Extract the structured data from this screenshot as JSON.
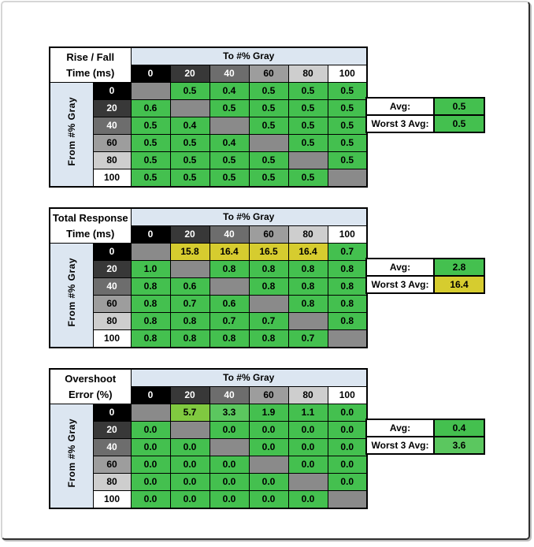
{
  "colors": {
    "cells": {
      "green": "#44c04f",
      "mid_green": "#5bc75f",
      "yellow_green": "#80c940",
      "yellow": "#d6cc2f",
      "diagonal": "#8a8a8a"
    },
    "header_strip": "#dce6f1",
    "gray_ramp": {
      "0": "#000000",
      "20": "#383838",
      "40": "#6d6d6d",
      "60": "#9d9d9d",
      "80": "#cecece",
      "100": "#ffffff"
    },
    "gray_ramp_text": {
      "0": "#ffffff",
      "20": "#ffffff",
      "40": "#ffffff",
      "60": "#000000",
      "80": "#000000",
      "100": "#000000"
    }
  },
  "chart_data": [
    {
      "type": "heatmap",
      "title_lines": [
        "Rise / Fall",
        "Time (ms)"
      ],
      "col_axis_label": "To #% Gray",
      "row_axis_label": "From #% Gray",
      "columns": [
        "0",
        "20",
        "40",
        "60",
        "80",
        "100"
      ],
      "rows": [
        "0",
        "20",
        "40",
        "60",
        "80",
        "100"
      ],
      "values": [
        [
          null,
          0.5,
          0.4,
          0.5,
          0.5,
          0.5
        ],
        [
          0.6,
          null,
          0.5,
          0.5,
          0.5,
          0.5
        ],
        [
          0.5,
          0.4,
          null,
          0.5,
          0.5,
          0.5
        ],
        [
          0.5,
          0.5,
          0.4,
          null,
          0.5,
          0.5
        ],
        [
          0.5,
          0.5,
          0.5,
          0.5,
          null,
          0.5
        ],
        [
          0.5,
          0.5,
          0.5,
          0.5,
          0.5,
          null
        ]
      ],
      "values_display": [
        [
          "",
          "0.5",
          "0.4",
          "0.5",
          "0.5",
          "0.5"
        ],
        [
          "0.6",
          "",
          "0.5",
          "0.5",
          "0.5",
          "0.5"
        ],
        [
          "0.5",
          "0.4",
          "",
          "0.5",
          "0.5",
          "0.5"
        ],
        [
          "0.5",
          "0.5",
          "0.4",
          "",
          "0.5",
          "0.5"
        ],
        [
          "0.5",
          "0.5",
          "0.5",
          "0.5",
          "",
          "0.5"
        ],
        [
          "0.5",
          "0.5",
          "0.5",
          "0.5",
          "0.5",
          ""
        ]
      ],
      "cell_colors": [
        [
          "diagonal",
          "green",
          "green",
          "green",
          "green",
          "green"
        ],
        [
          "green",
          "diagonal",
          "green",
          "green",
          "green",
          "green"
        ],
        [
          "green",
          "green",
          "diagonal",
          "green",
          "green",
          "green"
        ],
        [
          "green",
          "green",
          "green",
          "diagonal",
          "green",
          "green"
        ],
        [
          "green",
          "green",
          "green",
          "green",
          "diagonal",
          "green"
        ],
        [
          "green",
          "green",
          "green",
          "green",
          "green",
          "diagonal"
        ]
      ],
      "summary": {
        "avg_label": "Avg:",
        "avg_value": "0.5",
        "avg_color": "green",
        "worst_label": "Worst 3 Avg:",
        "worst_value": "0.5",
        "worst_color": "green"
      }
    },
    {
      "type": "heatmap",
      "title_lines": [
        "Total Response",
        "Time (ms)"
      ],
      "col_axis_label": "To #% Gray",
      "row_axis_label": "From #% Gray",
      "columns": [
        "0",
        "20",
        "40",
        "60",
        "80",
        "100"
      ],
      "rows": [
        "0",
        "20",
        "40",
        "60",
        "80",
        "100"
      ],
      "values": [
        [
          null,
          15.8,
          16.4,
          16.5,
          16.4,
          0.7
        ],
        [
          1.0,
          null,
          0.8,
          0.8,
          0.8,
          0.8
        ],
        [
          0.8,
          0.6,
          null,
          0.8,
          0.8,
          0.8
        ],
        [
          0.8,
          0.7,
          0.6,
          null,
          0.8,
          0.8
        ],
        [
          0.8,
          0.8,
          0.7,
          0.7,
          null,
          0.8
        ],
        [
          0.8,
          0.8,
          0.8,
          0.8,
          0.7,
          null
        ]
      ],
      "values_display": [
        [
          "",
          "15.8",
          "16.4",
          "16.5",
          "16.4",
          "0.7"
        ],
        [
          "1.0",
          "",
          "0.8",
          "0.8",
          "0.8",
          "0.8"
        ],
        [
          "0.8",
          "0.6",
          "",
          "0.8",
          "0.8",
          "0.8"
        ],
        [
          "0.8",
          "0.7",
          "0.6",
          "",
          "0.8",
          "0.8"
        ],
        [
          "0.8",
          "0.8",
          "0.7",
          "0.7",
          "",
          "0.8"
        ],
        [
          "0.8",
          "0.8",
          "0.8",
          "0.8",
          "0.7",
          ""
        ]
      ],
      "cell_colors": [
        [
          "diagonal",
          "yellow",
          "yellow",
          "yellow",
          "yellow",
          "green"
        ],
        [
          "green",
          "diagonal",
          "green",
          "green",
          "green",
          "green"
        ],
        [
          "green",
          "green",
          "diagonal",
          "green",
          "green",
          "green"
        ],
        [
          "green",
          "green",
          "green",
          "diagonal",
          "green",
          "green"
        ],
        [
          "green",
          "green",
          "green",
          "green",
          "diagonal",
          "green"
        ],
        [
          "green",
          "green",
          "green",
          "green",
          "green",
          "diagonal"
        ]
      ],
      "summary": {
        "avg_label": "Avg:",
        "avg_value": "2.8",
        "avg_color": "green",
        "worst_label": "Worst 3 Avg:",
        "worst_value": "16.4",
        "worst_color": "yellow"
      }
    },
    {
      "type": "heatmap",
      "title_lines": [
        "Overshoot",
        "Error (%)"
      ],
      "col_axis_label": "To #% Gray",
      "row_axis_label": "From #% Gray",
      "columns": [
        "0",
        "20",
        "40",
        "60",
        "80",
        "100"
      ],
      "rows": [
        "0",
        "20",
        "40",
        "60",
        "80",
        "100"
      ],
      "values": [
        [
          null,
          5.7,
          3.3,
          1.9,
          1.1,
          0.0
        ],
        [
          0.0,
          null,
          0.0,
          0.0,
          0.0,
          0.0
        ],
        [
          0.0,
          0.0,
          null,
          0.0,
          0.0,
          0.0
        ],
        [
          0.0,
          0.0,
          0.0,
          null,
          0.0,
          0.0
        ],
        [
          0.0,
          0.0,
          0.0,
          0.0,
          null,
          0.0
        ],
        [
          0.0,
          0.0,
          0.0,
          0.0,
          0.0,
          null
        ]
      ],
      "values_display": [
        [
          "",
          "5.7",
          "3.3",
          "1.9",
          "1.1",
          "0.0"
        ],
        [
          "0.0",
          "",
          "0.0",
          "0.0",
          "0.0",
          "0.0"
        ],
        [
          "0.0",
          "0.0",
          "",
          "0.0",
          "0.0",
          "0.0"
        ],
        [
          "0.0",
          "0.0",
          "0.0",
          "",
          "0.0",
          "0.0"
        ],
        [
          "0.0",
          "0.0",
          "0.0",
          "0.0",
          "",
          "0.0"
        ],
        [
          "0.0",
          "0.0",
          "0.0",
          "0.0",
          "0.0",
          ""
        ]
      ],
      "cell_colors": [
        [
          "diagonal",
          "yellow_green",
          "mid_green",
          "green",
          "green",
          "green"
        ],
        [
          "green",
          "diagonal",
          "green",
          "green",
          "green",
          "green"
        ],
        [
          "green",
          "green",
          "diagonal",
          "green",
          "green",
          "green"
        ],
        [
          "green",
          "green",
          "green",
          "diagonal",
          "green",
          "green"
        ],
        [
          "green",
          "green",
          "green",
          "green",
          "diagonal",
          "green"
        ],
        [
          "green",
          "green",
          "green",
          "green",
          "green",
          "diagonal"
        ]
      ],
      "summary": {
        "avg_label": "Avg:",
        "avg_value": "0.4",
        "avg_color": "green",
        "worst_label": "Worst 3 Avg:",
        "worst_value": "3.6",
        "worst_color": "mid_green"
      }
    }
  ]
}
